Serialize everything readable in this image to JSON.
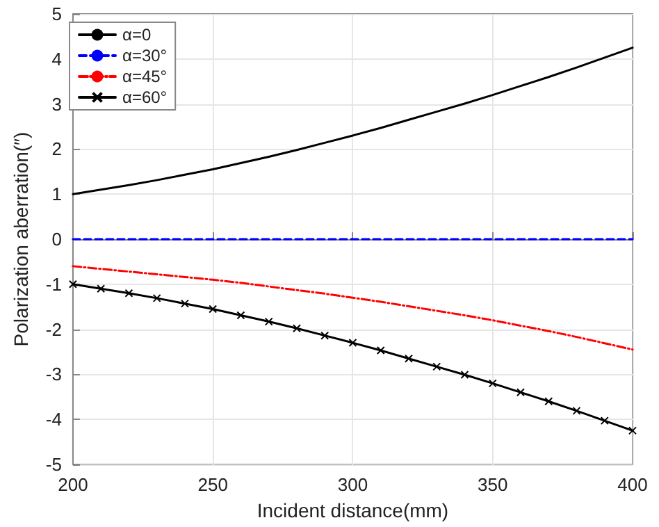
{
  "chart_data": {
    "type": "line",
    "xlabel": "Incident distance(mm)",
    "ylabel": "Polarization aberration(″)",
    "x": [
      200,
      210,
      220,
      230,
      240,
      250,
      260,
      270,
      280,
      290,
      300,
      310,
      320,
      330,
      340,
      350,
      360,
      370,
      380,
      390,
      400
    ],
    "xlim": [
      200,
      400
    ],
    "xticks": [
      200,
      250,
      300,
      350,
      400
    ],
    "ylim": [
      -5,
      5
    ],
    "yticks": [
      -5,
      -4,
      -3,
      -2,
      -1,
      0,
      1,
      2,
      3,
      4,
      5
    ],
    "grid": true,
    "legend": "top left",
    "series": [
      {
        "name": "α=0",
        "color": "#000000",
        "line_style": "solid",
        "marker": "none",
        "values": [
          1.0,
          1.1,
          1.2,
          1.31,
          1.43,
          1.55,
          1.69,
          1.83,
          1.98,
          2.14,
          2.3,
          2.47,
          2.65,
          2.83,
          3.01,
          3.2,
          3.4,
          3.6,
          3.81,
          4.03,
          4.25
        ]
      },
      {
        "name": "α=30°",
        "color": "#0000ff",
        "line_style": "dashed",
        "marker": "none",
        "values": [
          0,
          0,
          0,
          0,
          0,
          0,
          0,
          0,
          0,
          0,
          0,
          0,
          0,
          0,
          0,
          0,
          0,
          0,
          0,
          0,
          0
        ]
      },
      {
        "name": "α=45°",
        "color": "#ff0000",
        "line_style": "dashdot",
        "marker": "none",
        "values": [
          -0.6,
          -0.66,
          -0.72,
          -0.78,
          -0.84,
          -0.9,
          -0.97,
          -1.05,
          -1.13,
          -1.21,
          -1.3,
          -1.39,
          -1.49,
          -1.59,
          -1.69,
          -1.8,
          -1.92,
          -2.04,
          -2.17,
          -2.31,
          -2.45
        ]
      },
      {
        "name": "α=60°",
        "color": "#000000",
        "line_style": "solid",
        "marker": "cross",
        "values": [
          -1.0,
          -1.1,
          -1.2,
          -1.31,
          -1.43,
          -1.55,
          -1.69,
          -1.83,
          -1.98,
          -2.14,
          -2.3,
          -2.47,
          -2.65,
          -2.83,
          -3.01,
          -3.2,
          -3.4,
          -3.6,
          -3.81,
          -4.03,
          -4.25
        ]
      }
    ]
  }
}
